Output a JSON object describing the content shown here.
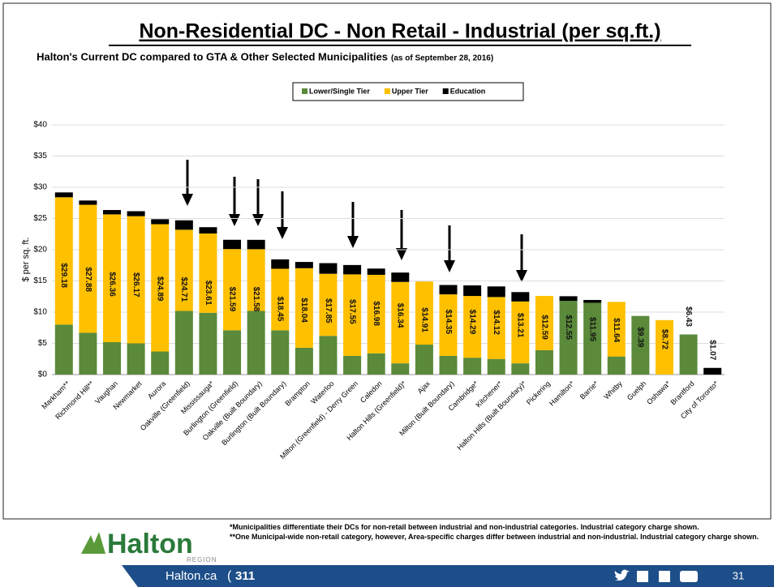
{
  "chart_data": {
    "type": "stacked_bar",
    "title": "Non-Residential DC - Non Retail - Industrial (per sq.ft.)",
    "subtitle": "Halton's Current DC compared to GTA & Other Selected Municipalities",
    "subtitle_note": "(as of September 28, 2016)",
    "y_label": "$ per sq. ft.",
    "legend": "top",
    "grid": true,
    "ylim": [
      0,
      40
    ],
    "yticks": [
      {
        "value": 0,
        "label": "$0"
      },
      {
        "value": 5,
        "label": "$5"
      },
      {
        "value": 10,
        "label": "$10"
      },
      {
        "value": 15,
        "label": "$15"
      },
      {
        "value": 20,
        "label": "$20"
      },
      {
        "value": 25,
        "label": "$25"
      },
      {
        "value": 30,
        "label": "$30"
      },
      {
        "value": 35,
        "label": "$35"
      },
      {
        "value": 40,
        "label": "$40"
      }
    ],
    "categories": [
      "Markham**",
      "Richmond Hill**",
      "Vaughan",
      "Newmarket",
      "Aurora",
      "Oakville (Greenfield)",
      "Mississauga*",
      "Burlington (Greenfield)",
      "Oakville (Built Boundary)",
      "Burlington (Built Boundary)",
      "Brampton",
      "Waterloo",
      "Milton (Greenfield) - Derry Green",
      "Caledon",
      "Halton Hills (Greenfield)*",
      "Ajax",
      "Milton (Built Boundary)",
      "Cambridge*",
      "Kitchener*",
      "Halton Hills (Built Boundary)*",
      "Pickering",
      "Hamilton*",
      "Barrie*",
      "Whitby",
      "Guelph",
      "Oshawa*",
      "Brantford",
      "City of Toronto*"
    ],
    "series": [
      {
        "name": "Lower/Single Tier",
        "color": "#5a8a3a",
        "values": [
          8.0,
          6.7,
          5.2,
          5.0,
          3.7,
          10.2,
          9.9,
          7.1,
          10.2,
          7.1,
          4.3,
          6.2,
          3.0,
          3.4,
          1.8,
          4.8,
          3.0,
          2.7,
          2.5,
          1.8,
          3.9,
          11.8,
          11.5,
          2.9,
          9.39,
          0,
          6.43,
          0
        ]
      },
      {
        "name": "Upper Tier",
        "color": "#ffc000",
        "values": [
          20.4,
          20.5,
          20.46,
          20.37,
          20.39,
          13.0,
          12.7,
          13.0,
          9.88,
          9.85,
          12.74,
          9.95,
          13.05,
          12.58,
          13.04,
          10.11,
          9.85,
          9.89,
          9.92,
          9.91,
          8.69,
          0,
          0,
          8.74,
          0,
          8.72,
          0,
          0
        ]
      },
      {
        "name": "Education",
        "color": "#000000",
        "values": [
          0.78,
          0.68,
          0.7,
          0.8,
          0.8,
          1.51,
          1.01,
          1.49,
          1.5,
          1.5,
          1.0,
          1.7,
          1.5,
          1.0,
          1.5,
          0,
          1.5,
          1.7,
          1.7,
          1.5,
          0,
          0.75,
          0.45,
          0,
          0,
          0,
          0,
          1.07
        ]
      }
    ],
    "totals": [
      29.18,
      27.88,
      26.36,
      26.17,
      24.89,
      24.71,
      23.61,
      21.59,
      21.58,
      18.45,
      18.04,
      17.85,
      17.55,
      16.98,
      16.34,
      14.91,
      14.35,
      14.29,
      14.12,
      13.21,
      12.59,
      12.55,
      11.95,
      11.64,
      9.39,
      8.72,
      6.43,
      1.07
    ],
    "total_labels": [
      "$29.18",
      "$27.88",
      "$26.36",
      "$26.17",
      "$24.89",
      "$24.71",
      "$23.61",
      "$21.59",
      "$21.58",
      "$18.45",
      "$18.04",
      "$17.85",
      "$17.55",
      "$16.98",
      "$16.34",
      "$14.91",
      "$14.35",
      "$14.29",
      "$14.12",
      "$13.21",
      "$12.59",
      "$12.55",
      "$11.95",
      "$11.64",
      "$9.39",
      "$8.72",
      "$6.43",
      "$1.07"
    ]
  },
  "footer": {
    "logo": "Halton",
    "logo_sub": "REGION",
    "notes": [
      "*Municipalities differentiate their DCs for non-retail between industrial and non-industrial categories.  Industrial category charge shown.",
      "**One Municipal-wide non-retail category, however, Area-specific charges differ between industrial and non-industrial.  Industrial category charge shown."
    ],
    "website": "Halton.ca",
    "phone": "311",
    "page": "31"
  }
}
